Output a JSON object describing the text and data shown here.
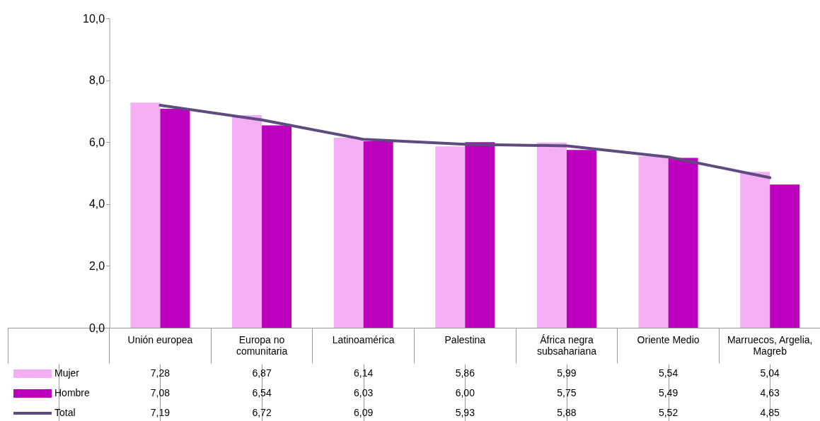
{
  "chart_data": {
    "type": "bar",
    "categories": [
      "Unión europea",
      "Europa no comunitaria",
      "Latinoamérica",
      "Palestina",
      "África negra subsahariana",
      "Oriente Medio",
      "Marruecos, Argelia, Magreb"
    ],
    "series": [
      {
        "name": "Mujer",
        "color": "#f4aef4",
        "values": [
          7.28,
          6.87,
          6.14,
          5.86,
          5.99,
          5.54,
          5.04
        ],
        "value_labels": [
          "7,28",
          "6,87",
          "6,14",
          "5,86",
          "5,99",
          "5,54",
          "5,04"
        ]
      },
      {
        "name": "Hombre",
        "color": "#bd00bd",
        "values": [
          7.08,
          6.54,
          6.03,
          6.0,
          5.75,
          5.49,
          4.63
        ],
        "value_labels": [
          "7,08",
          "6,54",
          "6,03",
          "6,00",
          "5,75",
          "5,49",
          "4,63"
        ]
      },
      {
        "name": "Total",
        "type": "line",
        "color": "#5e4b80",
        "values": [
          7.19,
          6.72,
          6.09,
          5.93,
          5.88,
          5.52,
          4.85
        ],
        "value_labels": [
          "7,19",
          "6,72",
          "6,09",
          "5,93",
          "5,88",
          "5,52",
          "4,85"
        ]
      }
    ],
    "ylim": [
      0,
      10
    ],
    "yticks": [
      {
        "value": 0,
        "label": "0,0"
      },
      {
        "value": 2,
        "label": "2,0"
      },
      {
        "value": 4,
        "label": "4,0"
      },
      {
        "value": 6,
        "label": "6,0"
      },
      {
        "value": 8,
        "label": "8,0"
      },
      {
        "value": 10,
        "label": "10,0"
      }
    ],
    "legend": "bottom left"
  }
}
